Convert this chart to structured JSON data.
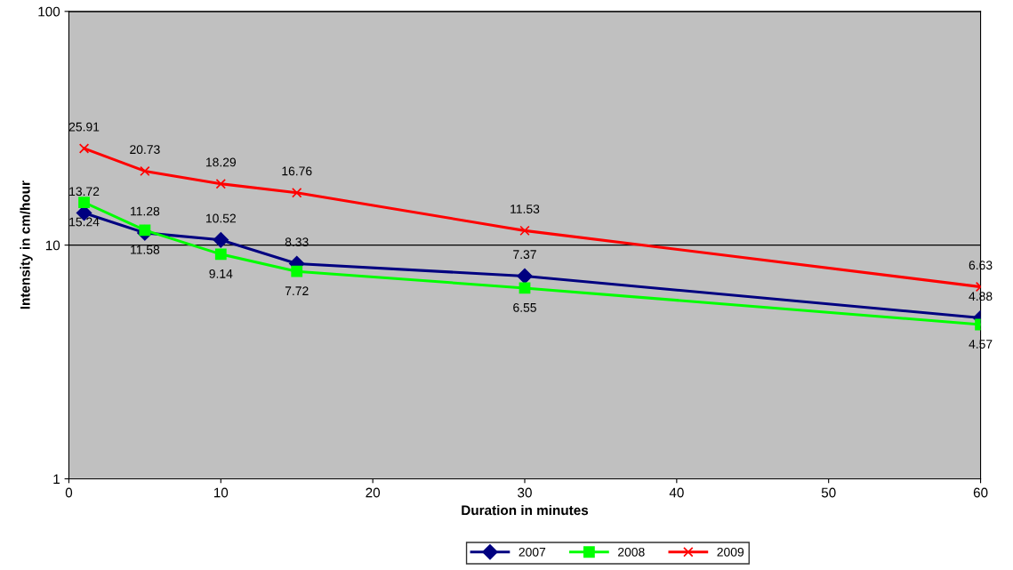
{
  "chart_data": {
    "type": "line",
    "xlabel": "Duration in minutes",
    "ylabel": "Intensity in cm/hour",
    "x": [
      1,
      5,
      10,
      15,
      30,
      60
    ],
    "series": [
      {
        "name": "2007",
        "color": "#000080",
        "marker": "diamond",
        "values": [
          13.72,
          11.28,
          10.52,
          8.33,
          7.37,
          4.88
        ]
      },
      {
        "name": "2008",
        "color": "#00ff00",
        "marker": "square",
        "values": [
          15.24,
          11.58,
          9.14,
          7.72,
          6.55,
          4.57
        ]
      },
      {
        "name": "2009",
        "color": "#ff0000",
        "marker": "cross",
        "values": [
          25.91,
          20.73,
          18.29,
          16.76,
          11.53,
          6.63
        ]
      }
    ],
    "log": "y",
    "xlim": [
      0,
      60
    ],
    "xticks": [
      0,
      10,
      20,
      30,
      40,
      50,
      60
    ],
    "ylim": [
      1,
      100
    ],
    "yticks": [
      1,
      10,
      100
    ],
    "grid": "y",
    "legend": "bottom",
    "data_labels": true,
    "line_style": "solid"
  }
}
